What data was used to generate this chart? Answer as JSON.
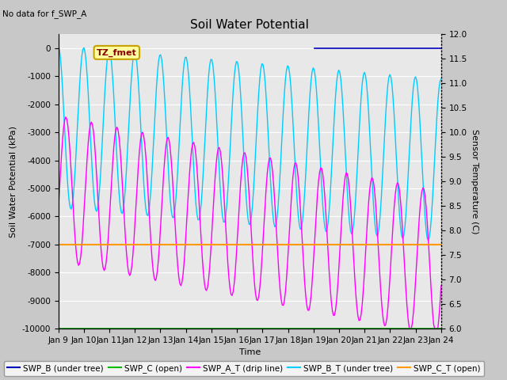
{
  "title": "Soil Water Potential",
  "subtitle": "No data for f_SWP_A",
  "xlabel": "Time",
  "ylabel_left": "Soil Water Potential (kPa)",
  "ylabel_right": "Sensor Temperature (C)",
  "ylim_left": [
    -10000,
    500
  ],
  "ylim_right": [
    6.0,
    12.0
  ],
  "x_tick_labels": [
    "Jan 9",
    "Jan 10",
    "Jan 11",
    "Jan 12",
    "Jan 13",
    "Jan 14",
    "Jan 15",
    "Jan 16",
    "Jan 17",
    "Jan 18",
    "Jan 19",
    "Jan 20",
    "Jan 21",
    "Jan 22",
    "Jan 23",
    "Jan 24"
  ],
  "fig_bg_color": "#c8c8c8",
  "plot_bg_color": "#e8e8e8",
  "grid_color": "#ffffff",
  "annotation_box_label": "TZ_fmet",
  "annotation_box_color": "#ffffa0",
  "annotation_box_border": "#c8a000",
  "annotation_text_color": "#880000",
  "swp_b_color": "#0000bb",
  "swp_c_color": "#00bb00",
  "swp_at_color": "#ff00ff",
  "swp_bt_color": "#00ccff",
  "swp_ct_color": "#ff9900",
  "legend_labels": [
    "SWP_B (under tree)",
    "SWP_C (open)",
    "SWP_A_T (drip line)",
    "SWP_B_T (under tree)",
    "SWP_C_T (open)"
  ],
  "title_fontsize": 11,
  "axis_label_fontsize": 8,
  "tick_fontsize": 7.5,
  "legend_fontsize": 7.5
}
